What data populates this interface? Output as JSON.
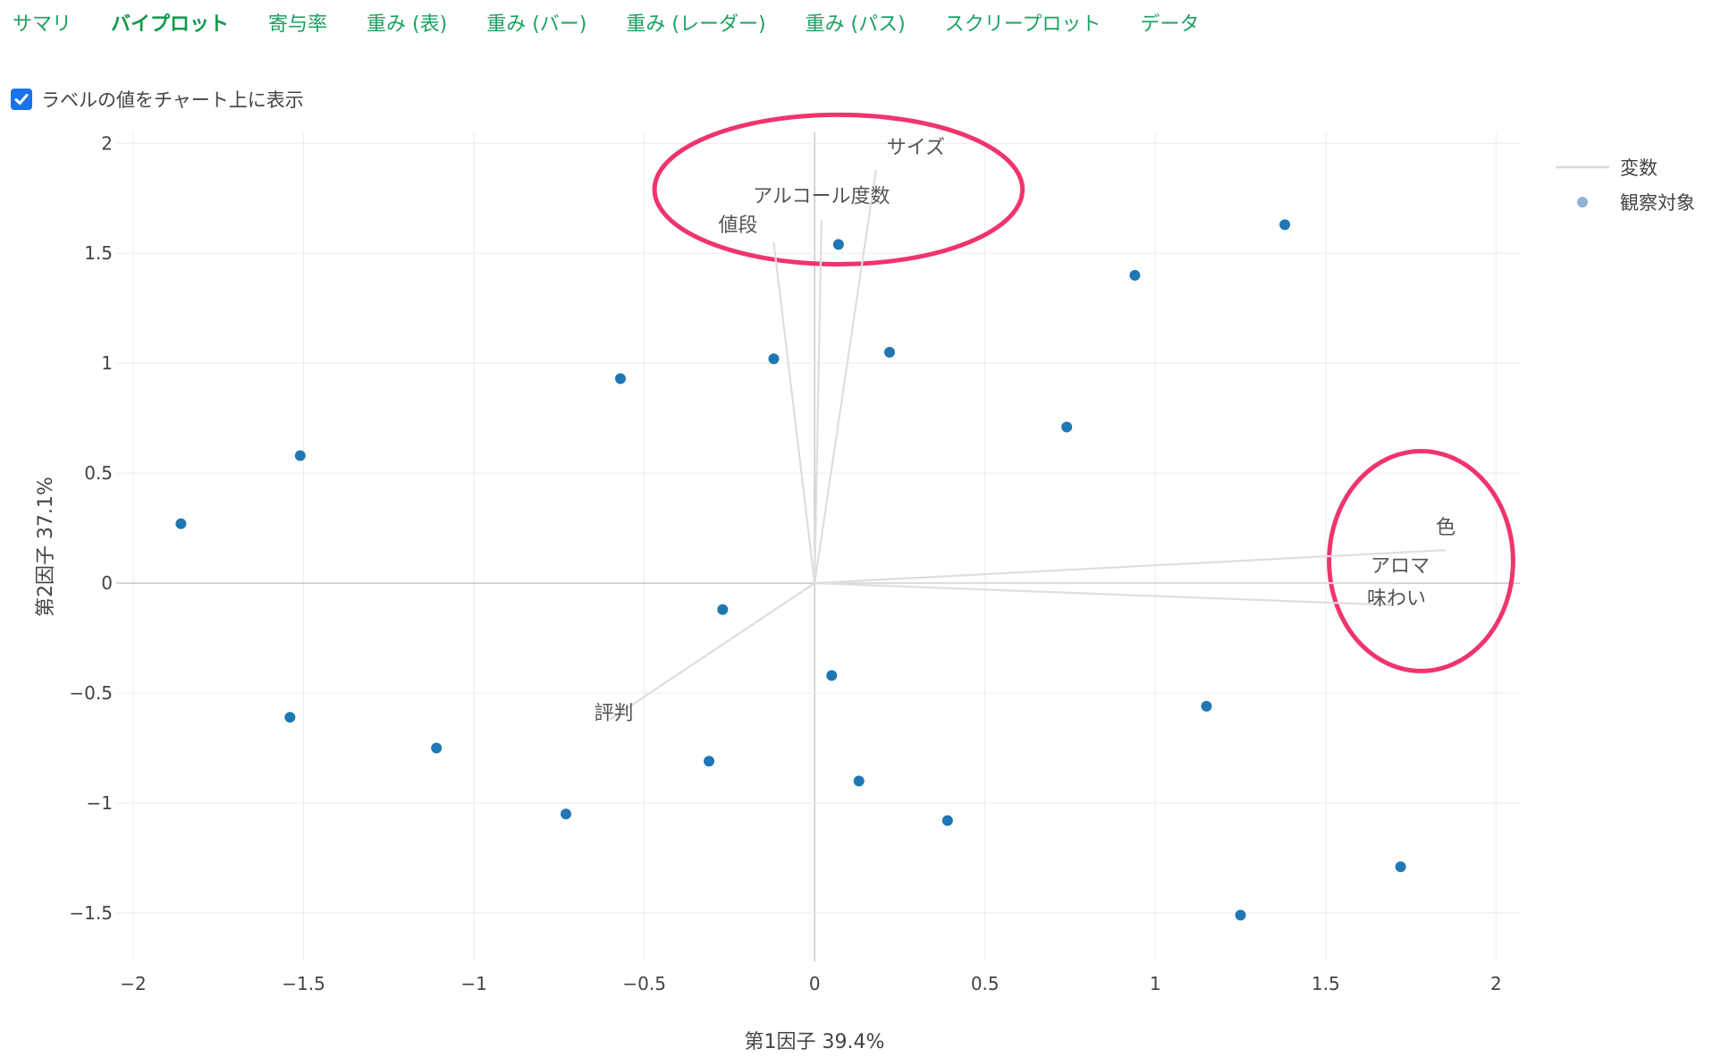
{
  "tabs": [
    {
      "label": "サマリ",
      "active": false
    },
    {
      "label": "バイプロット",
      "active": true
    },
    {
      "label": "寄与率",
      "active": false
    },
    {
      "label": "重み (表)",
      "active": false
    },
    {
      "label": "重み (バー)",
      "active": false
    },
    {
      "label": "重み (レーダー)",
      "active": false
    },
    {
      "label": "重み (パス)",
      "active": false
    },
    {
      "label": "スクリープロット",
      "active": false
    },
    {
      "label": "データ",
      "active": false
    }
  ],
  "option": {
    "label": "ラベルの値をチャート上に表示",
    "checked": true
  },
  "chart_data": {
    "type": "scatter",
    "xlabel": "第1因子 39.4%",
    "ylabel": "第2因子 37.1%",
    "xlim": [
      -2.05,
      2.07
    ],
    "ylim": [
      -1.72,
      2.05
    ],
    "xticks": [
      -2,
      -1.5,
      -1,
      -0.5,
      0,
      0.5,
      1,
      1.5,
      2
    ],
    "xtick_labels": [
      "−2",
      "−1.5",
      "−1",
      "−0.5",
      "0",
      "0.5",
      "1",
      "1.5",
      "2"
    ],
    "yticks": [
      -1.5,
      -1,
      -0.5,
      0,
      0.5,
      1,
      1.5,
      2
    ],
    "ytick_labels": [
      "−1.5",
      "−1",
      "−0.5",
      "0",
      "0.5",
      "1",
      "1.5",
      "2"
    ],
    "grid": true,
    "legend": {
      "position": "top-right",
      "entries": [
        {
          "label": "変数",
          "kind": "line",
          "color": "#d9d9d9"
        },
        {
          "label": "観察対象",
          "kind": "marker",
          "color": "#8fb3d3"
        }
      ]
    },
    "series": [
      {
        "name": "変数",
        "kind": "vectors",
        "color": "#dedede",
        "vectors": [
          {
            "label": "サイズ",
            "x": 0.18,
            "y": 1.88
          },
          {
            "label": "アルコール度数",
            "x": 0.02,
            "y": 1.65
          },
          {
            "label": "値段",
            "x": -0.12,
            "y": 1.55
          },
          {
            "label": "色",
            "x": 1.85,
            "y": 0.15
          },
          {
            "label": "アロマ",
            "x": 1.7,
            "y": 0.0
          },
          {
            "label": "味わい",
            "x": 1.7,
            "y": -0.1
          },
          {
            "label": "評判",
            "x": -0.6,
            "y": -0.62
          }
        ]
      },
      {
        "name": "観察対象",
        "kind": "points",
        "color": "#1f77b4",
        "points": [
          [
            -1.86,
            0.27
          ],
          [
            -1.51,
            0.58
          ],
          [
            -1.54,
            -0.61
          ],
          [
            -1.11,
            -0.75
          ],
          [
            -0.73,
            -1.05
          ],
          [
            -0.57,
            0.93
          ],
          [
            -0.31,
            -0.81
          ],
          [
            -0.27,
            -0.12
          ],
          [
            -0.12,
            1.02
          ],
          [
            0.07,
            1.54
          ],
          [
            0.05,
            -0.42
          ],
          [
            0.13,
            -0.9
          ],
          [
            0.22,
            1.05
          ],
          [
            0.39,
            -1.08
          ],
          [
            0.74,
            0.71
          ],
          [
            0.94,
            1.4
          ],
          [
            1.15,
            -0.56
          ],
          [
            1.25,
            -1.51
          ],
          [
            1.38,
            1.63
          ],
          [
            1.72,
            -1.29
          ]
        ]
      }
    ],
    "annotations": [
      {
        "kind": "ellipse",
        "color": "#f0346d",
        "cx": 0.07,
        "cy": 1.79,
        "rx": 0.54,
        "ry": 0.34
      },
      {
        "kind": "ellipse",
        "color": "#f0346d",
        "cx": 1.78,
        "cy": 0.1,
        "rx": 0.27,
        "ry": 0.5
      }
    ]
  }
}
